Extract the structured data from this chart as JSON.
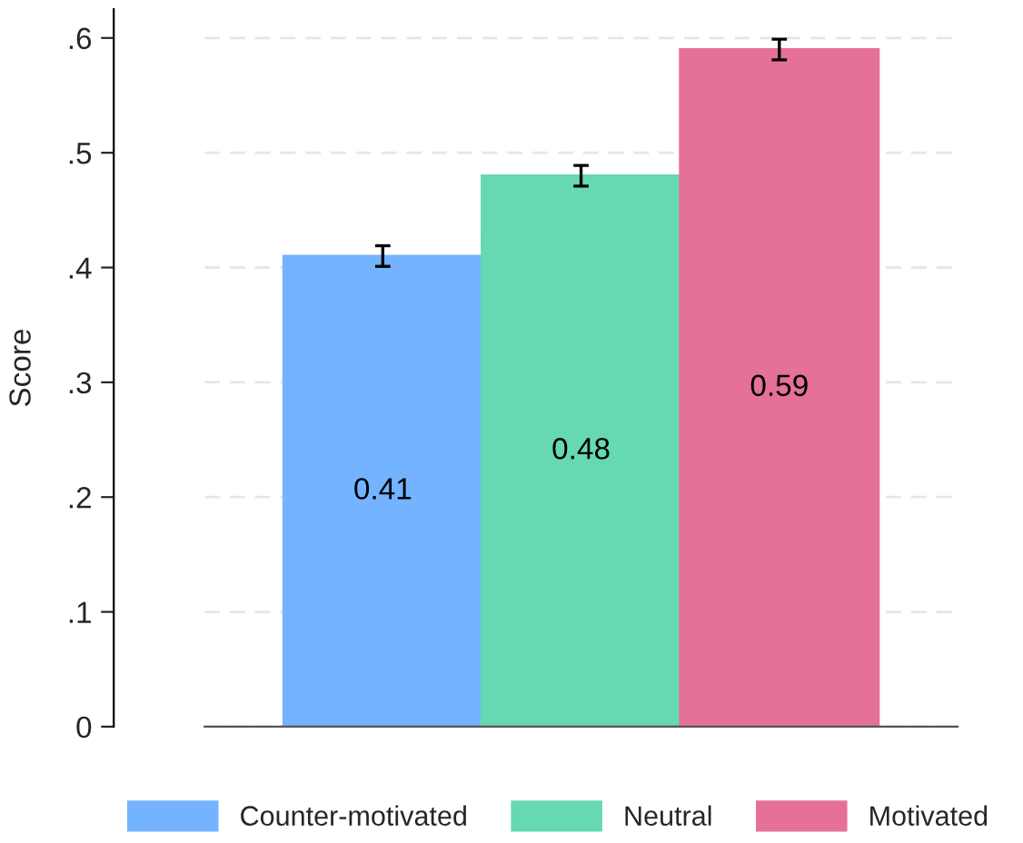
{
  "chart_data": {
    "type": "bar",
    "ylabel": "Score",
    "categories": [
      null
    ],
    "series": [
      {
        "name": "Counter-motivated",
        "color": "#74b3ff",
        "values": [
          0.41
        ],
        "errors": [
          0.009
        ]
      },
      {
        "name": "Neutral",
        "color": "#66d9b2",
        "values": [
          0.48
        ],
        "errors": [
          0.009
        ]
      },
      {
        "name": "Motivated",
        "color": "#e57099",
        "values": [
          0.59
        ],
        "errors": [
          0.009
        ]
      }
    ],
    "ylim": [
      0,
      0.625
    ],
    "yticks": [
      {
        "value": 0,
        "label": "0"
      },
      {
        "value": 0.1,
        "label": ".1"
      },
      {
        "value": 0.2,
        "label": ".2"
      },
      {
        "value": 0.3,
        "label": ".3"
      },
      {
        "value": 0.4,
        "label": ".4"
      },
      {
        "value": 0.5,
        "label": ".5"
      },
      {
        "value": 0.6,
        "label": ".6"
      }
    ],
    "grid": "y",
    "legend": "bottom",
    "data_labels": true
  }
}
